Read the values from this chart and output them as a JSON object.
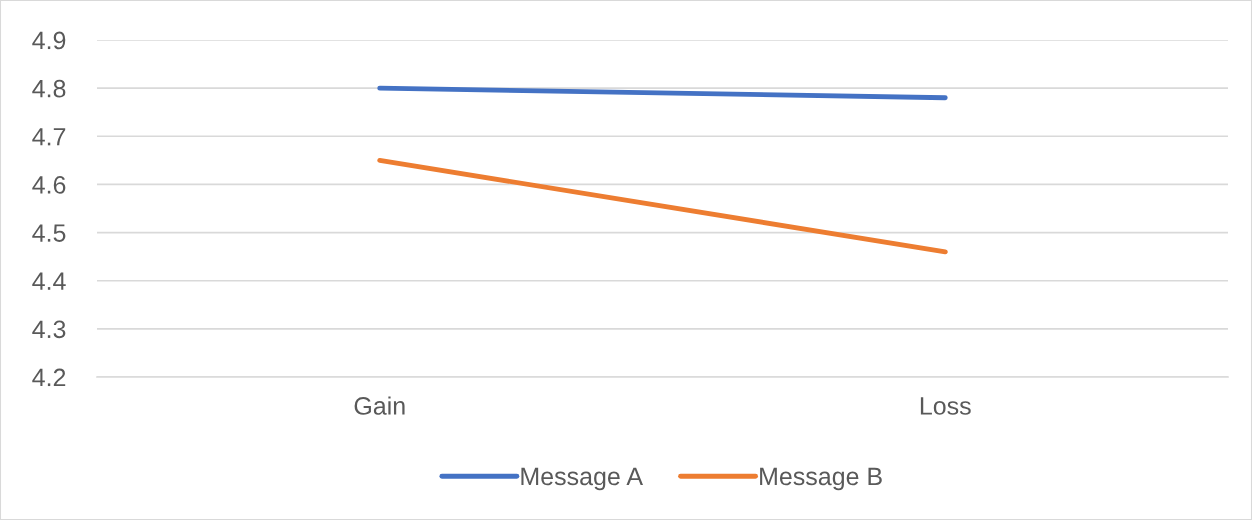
{
  "chart_data": {
    "type": "line",
    "categories": [
      "Gain",
      "Loss"
    ],
    "series": [
      {
        "name": "Message A",
        "color": "#4472c4",
        "values": [
          4.8,
          4.78
        ]
      },
      {
        "name": "Message B",
        "color": "#ed7d31",
        "values": [
          4.65,
          4.46
        ]
      }
    ],
    "ylim": [
      4.2,
      4.9
    ],
    "yticks": [
      4.2,
      4.3,
      4.4,
      4.5,
      4.6,
      4.7,
      4.8,
      4.9
    ],
    "grid": "y",
    "legend": "bottom",
    "marker": "none",
    "line_style": "solid"
  }
}
